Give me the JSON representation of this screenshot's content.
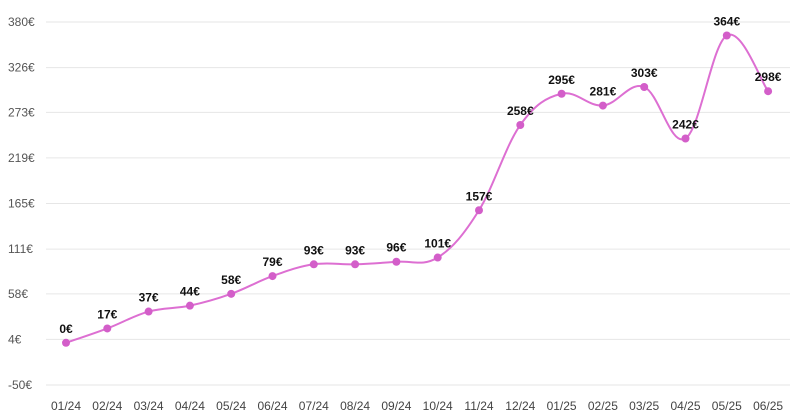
{
  "chart_data": {
    "type": "line",
    "categories": [
      "01/24",
      "02/24",
      "03/24",
      "04/24",
      "05/24",
      "06/24",
      "07/24",
      "08/24",
      "09/24",
      "10/24",
      "11/24",
      "12/24",
      "01/25",
      "02/25",
      "03/25",
      "04/25",
      "05/25",
      "06/25"
    ],
    "series": [
      {
        "values": [
          0,
          17,
          37,
          44,
          58,
          79,
          93,
          93,
          96,
          101,
          157,
          258,
          295,
          281,
          303,
          242,
          364,
          298
        ]
      }
    ],
    "data_labels": [
      "0€",
      "17€",
      "37€",
      "44€",
      "58€",
      "79€",
      "93€",
      "93€",
      "96€",
      "101€",
      "157€",
      "258€",
      "295€",
      "281€",
      "303€",
      "242€",
      "364€",
      "298€"
    ],
    "y_ticks": [
      -50,
      4,
      58,
      111,
      165,
      219,
      273,
      326,
      380
    ],
    "y_tick_labels": [
      "-50€",
      "4€",
      "58€",
      "111€",
      "165€",
      "219€",
      "273€",
      "326€",
      "380€"
    ],
    "ylim": [
      -50,
      380
    ],
    "grid": true,
    "line_color": "#dd6fd2",
    "marker_color": "#d35ec9",
    "smooth": true
  }
}
